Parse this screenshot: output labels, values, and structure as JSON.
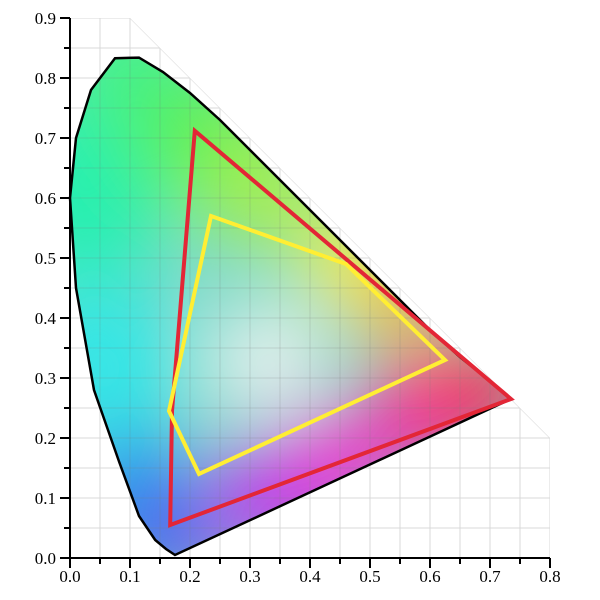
{
  "chart_data": {
    "type": "scatter",
    "title": "",
    "xlabel": "",
    "ylabel": "",
    "xlim": [
      0,
      0.8
    ],
    "ylim": [
      0,
      0.9
    ],
    "x_ticks": [
      "0.0",
      "0.1",
      "0.2",
      "0.3",
      "0.4",
      "0.5",
      "0.6",
      "0.7",
      "0.8"
    ],
    "y_ticks": [
      "0.0",
      "0.1",
      "0.2",
      "0.3",
      "0.4",
      "0.5",
      "0.6",
      "0.7",
      "0.8",
      "0.9"
    ],
    "grid": true,
    "spectral_locus": [
      [
        0.175,
        0.005
      ],
      [
        0.16,
        0.015
      ],
      [
        0.142,
        0.03
      ],
      [
        0.115,
        0.07
      ],
      [
        0.082,
        0.16
      ],
      [
        0.04,
        0.28
      ],
      [
        0.01,
        0.45
      ],
      [
        0.0,
        0.6
      ],
      [
        0.01,
        0.7
      ],
      [
        0.035,
        0.78
      ],
      [
        0.075,
        0.833
      ],
      [
        0.115,
        0.834
      ],
      [
        0.155,
        0.81
      ],
      [
        0.2,
        0.775
      ],
      [
        0.25,
        0.73
      ],
      [
        0.3,
        0.68
      ],
      [
        0.35,
        0.63
      ],
      [
        0.4,
        0.58
      ],
      [
        0.45,
        0.53
      ],
      [
        0.5,
        0.48
      ],
      [
        0.55,
        0.43
      ],
      [
        0.6,
        0.38
      ],
      [
        0.65,
        0.335
      ],
      [
        0.7,
        0.295
      ],
      [
        0.735,
        0.265
      ]
    ],
    "series": [
      {
        "color": "#e32636",
        "points": [
          [
            0.208,
            0.712
          ],
          [
            0.735,
            0.265
          ],
          [
            0.167,
            0.055
          ],
          [
            0.17,
            0.245
          ]
        ]
      },
      {
        "color": "#ffee33",
        "points": [
          [
            0.235,
            0.57
          ],
          [
            0.46,
            0.49
          ],
          [
            0.625,
            0.33
          ],
          [
            0.215,
            0.14
          ],
          [
            0.165,
            0.245
          ]
        ]
      }
    ]
  }
}
